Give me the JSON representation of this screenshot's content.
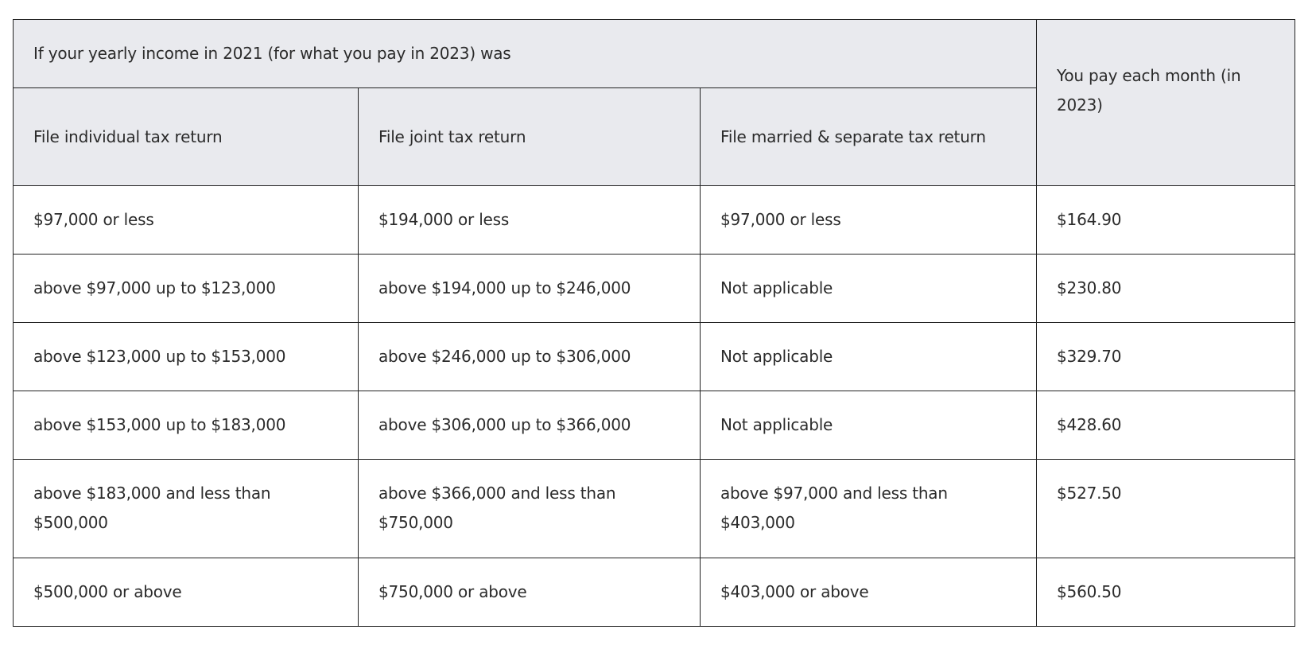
{
  "table": {
    "group_header": "If your yearly income in 2021 (for what you pay in 2023) was",
    "pay_header": "You pay each month (in 2023)",
    "columns": [
      "File individual tax return",
      "File joint tax return",
      "File married & separate tax return"
    ],
    "rows": [
      [
        "$97,000 or less",
        "$194,000 or less",
        "$97,000 or less",
        "$164.90"
      ],
      [
        "above $97,000 up to $123,000",
        "above $194,000 up to $246,000",
        "Not applicable",
        "$230.80"
      ],
      [
        "above $123,000 up to $153,000",
        "above $246,000 up to $306,000",
        "Not applicable",
        "$329.70"
      ],
      [
        "above $153,000 up to $183,000",
        "above $306,000 up to $366,000",
        "Not applicable",
        "$428.60"
      ],
      [
        "above $183,000 and less than $500,000",
        "above $366,000 and less than $750,000",
        "above $97,000 and less than $403,000",
        "$527.50"
      ],
      [
        "$500,000 or above",
        "$750,000 or above",
        "$403,000 or above",
        "$560.50"
      ]
    ]
  }
}
